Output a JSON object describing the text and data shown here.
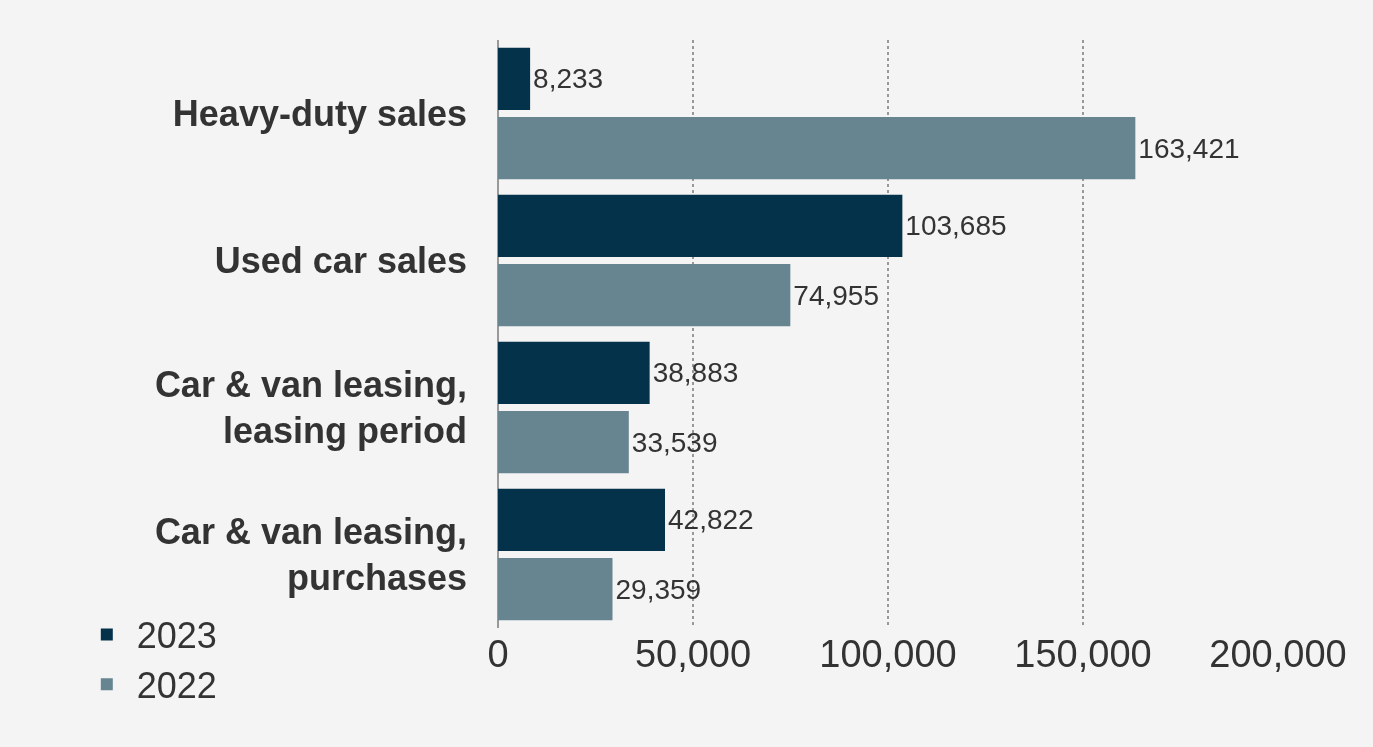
{
  "chart_data": {
    "type": "bar",
    "orientation": "horizontal",
    "categories": [
      "Heavy-duty sales",
      "Used car sales",
      "Car & van leasing, leasing period",
      "Car & van leasing, purchases"
    ],
    "series": [
      {
        "name": "2023",
        "color": "#03324a",
        "values": [
          8233,
          103685,
          38883,
          42822
        ],
        "value_labels": [
          "8,233",
          "103,685",
          "38,883",
          "42,822"
        ]
      },
      {
        "name": "2022",
        "color": "#668591",
        "values": [
          163421,
          74955,
          33539,
          29359
        ],
        "value_labels": [
          "163,421",
          "74,955",
          "33,539",
          "29,359"
        ]
      }
    ],
    "xlim": [
      0,
      200000
    ],
    "xticks": [
      0,
      {
        "value": 50000,
        "label": "50,000"
      },
      {
        "value": 100000,
        "label": "100,000"
      },
      {
        "value": 150000,
        "label": "150,000"
      },
      {
        "value": 200000,
        "label": "200,000"
      }
    ],
    "grid": "x",
    "legend": "bottom left"
  }
}
